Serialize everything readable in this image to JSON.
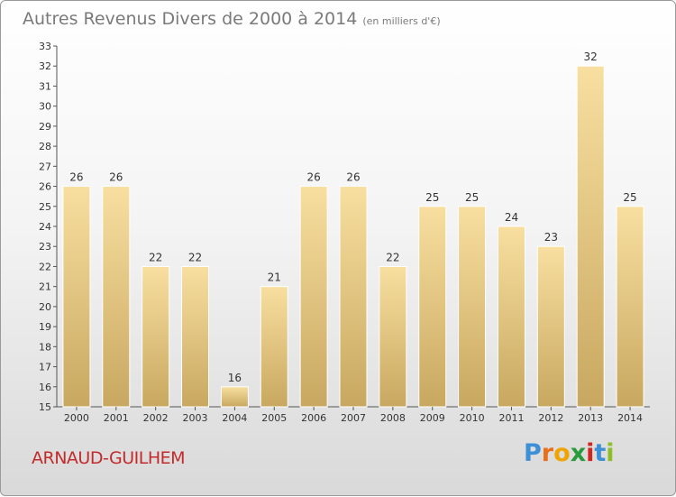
{
  "title": "Autres Revenus Divers de 2000 à 2014",
  "subtitle": "(en milliers d'€)",
  "location": "ARNAUD-GUILHEM",
  "logo": {
    "text": [
      "P",
      "r",
      "o",
      "x",
      "i",
      "t",
      "i"
    ],
    "colors": [
      "#3d8fd6",
      "#e8701a",
      "#f0a400",
      "#2b9a3c",
      "#d0261d",
      "#3d8fd6",
      "#8cbf26"
    ]
  },
  "colors": {
    "bar_top": "#f8dfa0",
    "bar_bottom": "#c8a860",
    "town": "#c22b2b"
  },
  "chart_data": {
    "type": "bar",
    "categories": [
      "2000",
      "2001",
      "2002",
      "2003",
      "2004",
      "2005",
      "2006",
      "2007",
      "2008",
      "2009",
      "2010",
      "2011",
      "2012",
      "2013",
      "2014"
    ],
    "values": [
      26,
      26,
      22,
      22,
      16,
      21,
      26,
      26,
      22,
      25,
      25,
      24,
      23,
      32,
      25
    ],
    "ylim": [
      15,
      33
    ],
    "yticks": [
      15,
      16,
      17,
      18,
      19,
      20,
      21,
      22,
      23,
      24,
      25,
      26,
      27,
      28,
      29,
      30,
      31,
      32,
      33
    ],
    "grid": false
  }
}
